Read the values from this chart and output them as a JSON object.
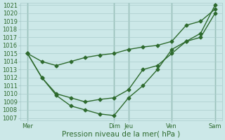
{
  "title": "",
  "xlabel": "Pression niveau de la mer( hPa )",
  "ylabel": "",
  "bg_color": "#cce8e8",
  "grid_color": "#aacccc",
  "line_color": "#2d6a2d",
  "ylim": [
    1007,
    1021
  ],
  "yticks": [
    1007,
    1008,
    1009,
    1010,
    1011,
    1012,
    1013,
    1014,
    1015,
    1016,
    1017,
    1018,
    1019,
    1020,
    1021
  ],
  "xlim": [
    -0.5,
    13.5
  ],
  "day_positions": [
    0,
    6,
    7,
    10,
    13
  ],
  "day_labels": [
    "Mer",
    "Dim",
    "Jeu",
    "Ven",
    "Sam"
  ],
  "vline_positions": [
    0,
    6,
    7,
    10,
    13
  ],
  "series1_x": [
    0,
    1,
    2,
    3,
    4,
    5,
    6,
    7,
    8,
    9,
    10,
    11,
    12,
    13
  ],
  "series1_y": [
    1015.0,
    1014.0,
    1013.5,
    1014.0,
    1014.5,
    1014.8,
    1015.0,
    1015.5,
    1015.8,
    1016.0,
    1016.5,
    1018.5,
    1019.0,
    1020.5
  ],
  "series2_x": [
    0,
    1,
    2,
    3,
    4,
    5,
    6,
    7,
    8,
    9,
    10,
    11,
    12,
    13
  ],
  "series2_y": [
    1015.0,
    1012.0,
    1010.0,
    1009.5,
    1009.0,
    1009.3,
    1009.5,
    1010.5,
    1013.0,
    1013.5,
    1015.0,
    1016.5,
    1017.0,
    1020.0
  ],
  "series3_x": [
    0,
    1,
    2,
    3,
    4,
    5,
    6,
    7,
    8,
    9,
    10,
    11,
    12,
    13
  ],
  "series3_y": [
    1015.0,
    1012.0,
    1009.8,
    1008.5,
    1008.0,
    1007.5,
    1007.3,
    1009.5,
    1011.0,
    1013.0,
    1015.5,
    1016.5,
    1017.5,
    1021.0
  ],
  "marker_size": 2.5,
  "line_width": 1.0,
  "tick_label_fontsize": 6,
  "xlabel_fontsize": 7.5
}
